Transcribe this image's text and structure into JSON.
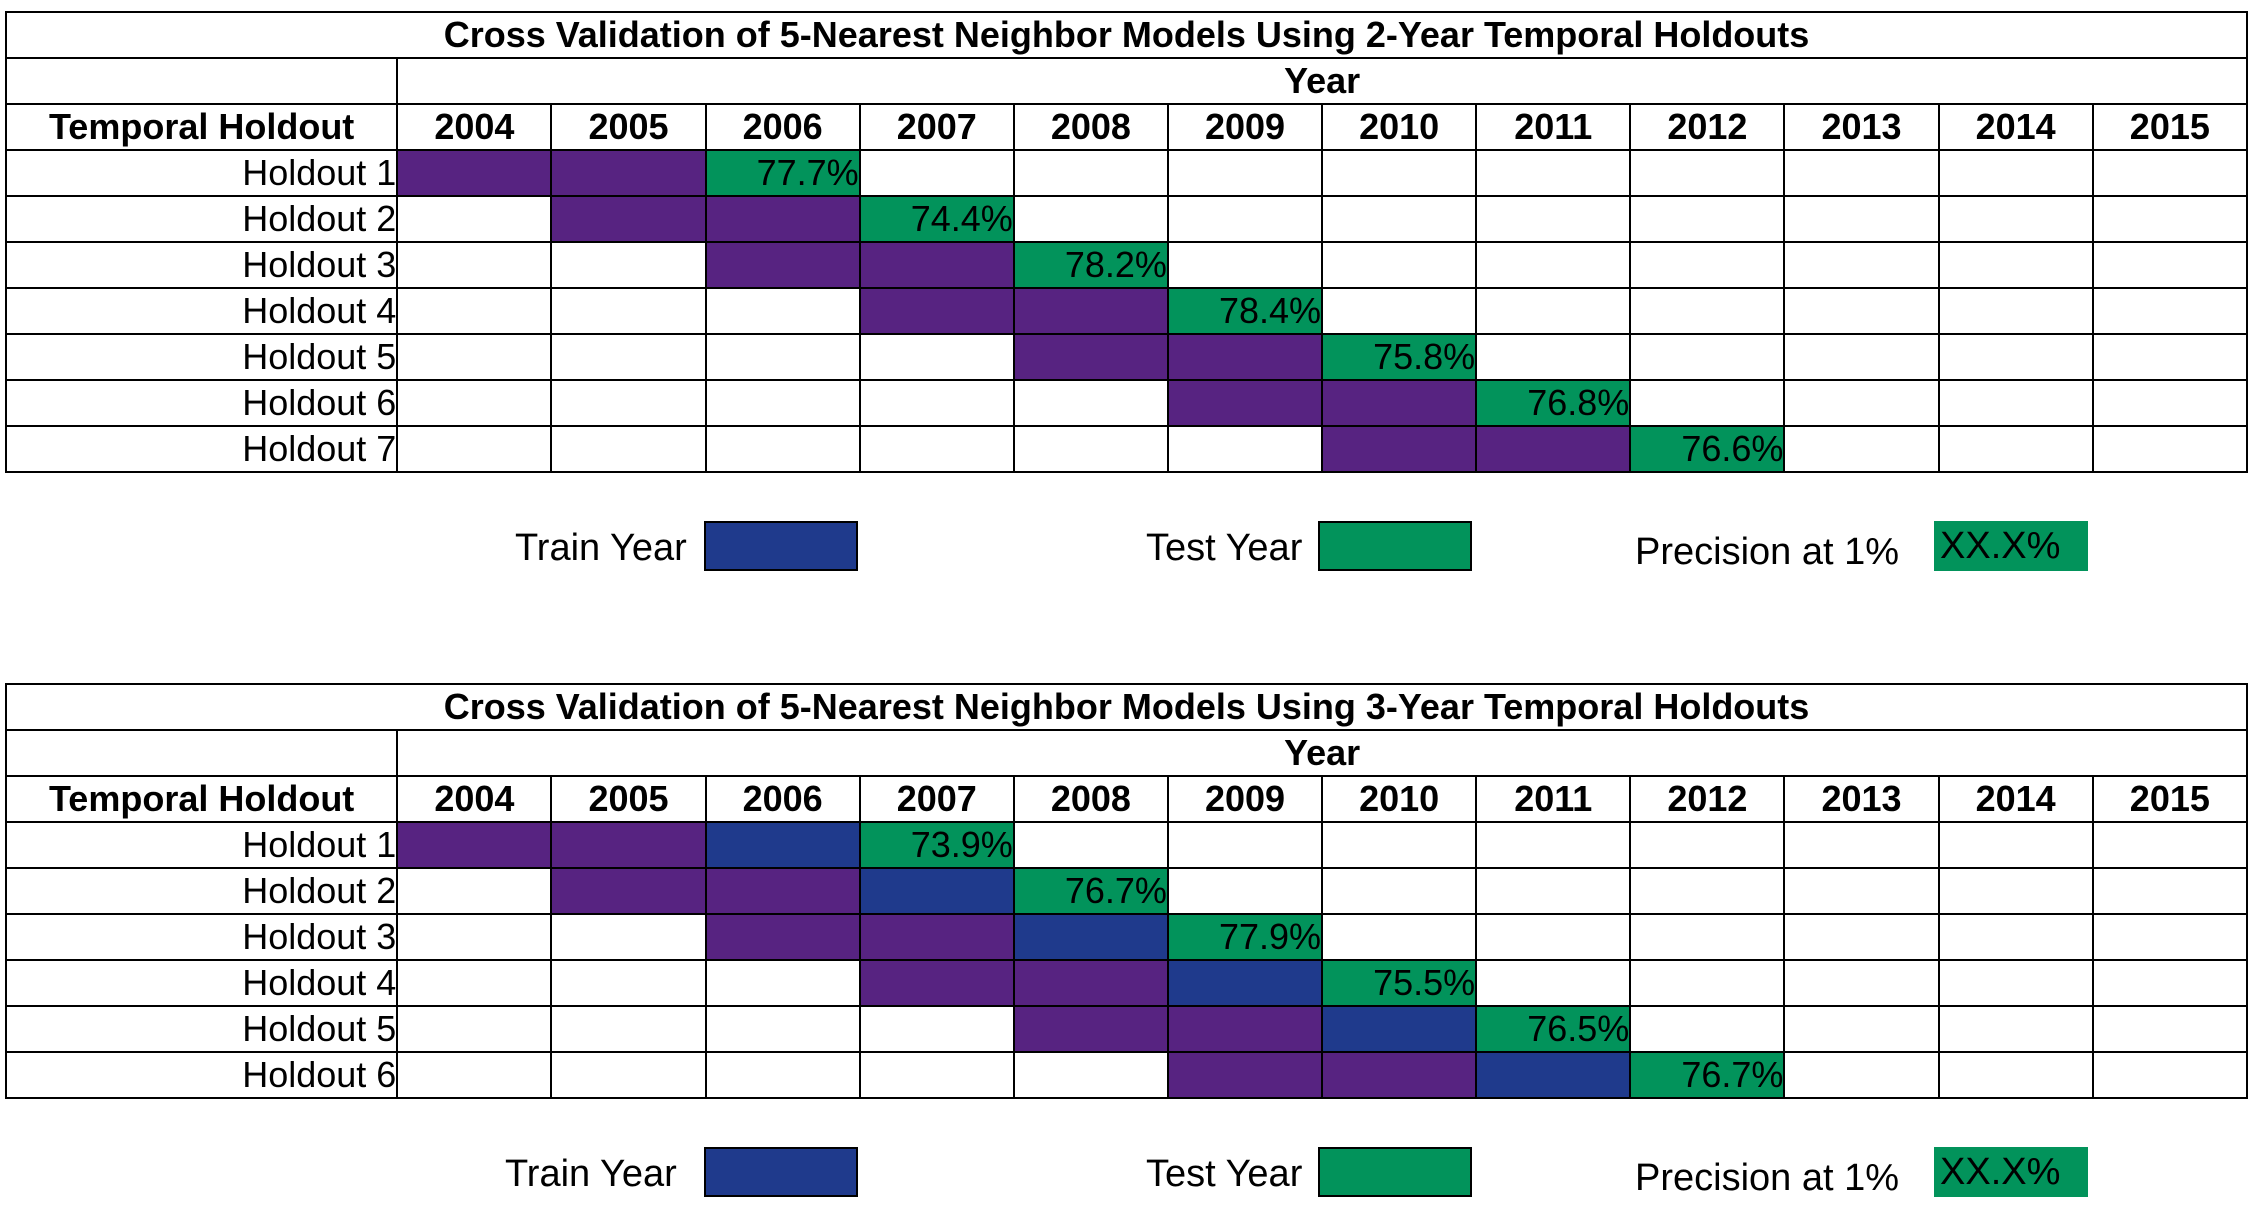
{
  "colors": {
    "train_year_cell": "#572381",
    "train_year_swatch": "#1f3a8c",
    "test_year": "#02935b"
  },
  "chart_data": [
    {
      "type": "table",
      "title": "Cross Validation of 5-Nearest Neighbor Models Using 2-Year Temporal Holdouts",
      "column_group_label": "Year",
      "row_header_label": "Temporal Holdout",
      "years": [
        "2004",
        "2005",
        "2006",
        "2007",
        "2008",
        "2009",
        "2010",
        "2011",
        "2012",
        "2013",
        "2014",
        "2015"
      ],
      "holdouts": [
        {
          "label": "Holdout 1",
          "train_years": [
            "2004",
            "2005"
          ],
          "test_year": "2006",
          "precision": "77.7%"
        },
        {
          "label": "Holdout 2",
          "train_years": [
            "2005",
            "2006"
          ],
          "test_year": "2007",
          "precision": "74.4%"
        },
        {
          "label": "Holdout 3",
          "train_years": [
            "2006",
            "2007"
          ],
          "test_year": "2008",
          "precision": "78.2%"
        },
        {
          "label": "Holdout 4",
          "train_years": [
            "2007",
            "2008"
          ],
          "test_year": "2009",
          "precision": "78.4%"
        },
        {
          "label": "Holdout 5",
          "train_years": [
            "2008",
            "2009"
          ],
          "test_year": "2010",
          "precision": "75.8%"
        },
        {
          "label": "Holdout 6",
          "train_years": [
            "2009",
            "2010"
          ],
          "test_year": "2011",
          "precision": "76.8%"
        },
        {
          "label": "Holdout 7",
          "train_years": [
            "2010",
            "2011"
          ],
          "test_year": "2012",
          "precision": "76.6%"
        }
      ],
      "legend": {
        "train": "Train Year",
        "test": "Test Year",
        "precision": "Precision at 1%",
        "precision_sample": "XX.X%"
      }
    },
    {
      "type": "table",
      "title": "Cross Validation of 5-Nearest Neighbor Models Using 3-Year Temporal Holdouts",
      "column_group_label": "Year",
      "row_header_label": "Temporal Holdout",
      "years": [
        "2004",
        "2005",
        "2006",
        "2007",
        "2008",
        "2009",
        "2010",
        "2011",
        "2012",
        "2013",
        "2014",
        "2015"
      ],
      "holdouts": [
        {
          "label": "Holdout 1",
          "train_years": [
            "2004",
            "2005",
            "2006"
          ],
          "test_year": "2007",
          "precision": "73.9%"
        },
        {
          "label": "Holdout 2",
          "train_years": [
            "2005",
            "2006",
            "2007"
          ],
          "test_year": "2008",
          "precision": "76.7%"
        },
        {
          "label": "Holdout 3",
          "train_years": [
            "2006",
            "2007",
            "2008"
          ],
          "test_year": "2009",
          "precision": "77.9%"
        },
        {
          "label": "Holdout 4",
          "train_years": [
            "2007",
            "2008",
            "2009"
          ],
          "test_year": "2010",
          "precision": "75.5%"
        },
        {
          "label": "Holdout 5",
          "train_years": [
            "2008",
            "2009",
            "2010"
          ],
          "test_year": "2011",
          "precision": "76.5%"
        },
        {
          "label": "Holdout 6",
          "train_years": [
            "2009",
            "2010",
            "2011"
          ],
          "test_year": "2012",
          "precision": "76.7%"
        }
      ],
      "legend": {
        "train": "Train Year",
        "test": "Test Year",
        "precision": "Precision at 1%",
        "precision_sample": "XX.X%"
      }
    }
  ]
}
